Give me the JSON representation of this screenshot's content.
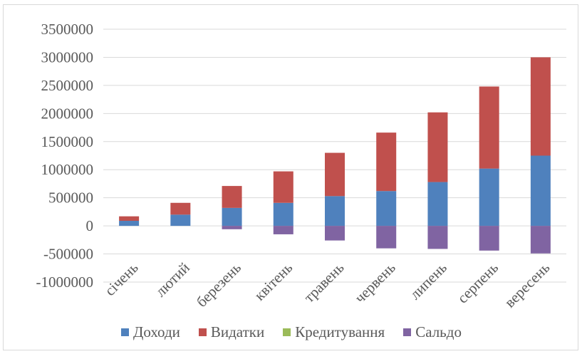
{
  "chart_data": {
    "type": "bar",
    "stacked": true,
    "categories": [
      "січень",
      "лютий",
      "березень",
      "квітень",
      "травень",
      "червень",
      "липень",
      "серпень",
      "вересень"
    ],
    "series": [
      {
        "name": "Доходи",
        "color": "#4f81bd",
        "values": [
          90000,
          200000,
          320000,
          410000,
          530000,
          620000,
          780000,
          1020000,
          1250000
        ]
      },
      {
        "name": "Видатки",
        "color": "#c0504d",
        "values": [
          80000,
          210000,
          390000,
          560000,
          770000,
          1040000,
          1240000,
          1460000,
          1750000
        ]
      },
      {
        "name": "Кредитування",
        "color": "#9bbb59",
        "values": [
          0,
          0,
          0,
          0,
          0,
          0,
          0,
          0,
          0
        ]
      },
      {
        "name": "Сальдо",
        "color": "#8064a2",
        "values": [
          0,
          0,
          -60000,
          -150000,
          -260000,
          -400000,
          -410000,
          -440000,
          -490000
        ]
      }
    ],
    "y_ticks": [
      "3500000",
      "3000000",
      "2500000",
      "2000000",
      "1500000",
      "1000000",
      "500000",
      "0",
      "-500000",
      "-1000000"
    ],
    "ylim": [
      -1000000,
      3500000
    ],
    "grid": true,
    "legend_position": "bottom",
    "title": "",
    "xlabel": "",
    "ylabel": ""
  }
}
